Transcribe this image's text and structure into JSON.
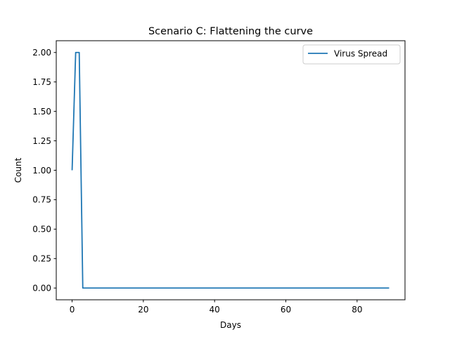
{
  "chart_data": {
    "type": "line",
    "title": "Scenario C: Flattening the curve",
    "xlabel": "Days",
    "ylabel": "Count",
    "xlim": [
      -4.45,
      93.45
    ],
    "ylim": [
      -0.1,
      2.1
    ],
    "xticks": [
      0,
      20,
      40,
      60,
      80
    ],
    "xtick_labels": [
      "0",
      "20",
      "40",
      "60",
      "80"
    ],
    "yticks": [
      0,
      0.25,
      0.5,
      0.75,
      1,
      1.25,
      1.5,
      1.75,
      2
    ],
    "ytick_labels": [
      "0.00",
      "0.25",
      "0.50",
      "0.75",
      "1.00",
      "1.25",
      "1.50",
      "1.75",
      "2.00"
    ],
    "grid": false,
    "legend_position": "upper right",
    "series": [
      {
        "name": "Virus Spread",
        "color": "#1f77b4",
        "x": [
          0,
          1,
          2,
          3,
          89
        ],
        "y": [
          1,
          2,
          2,
          0,
          0
        ]
      }
    ]
  }
}
